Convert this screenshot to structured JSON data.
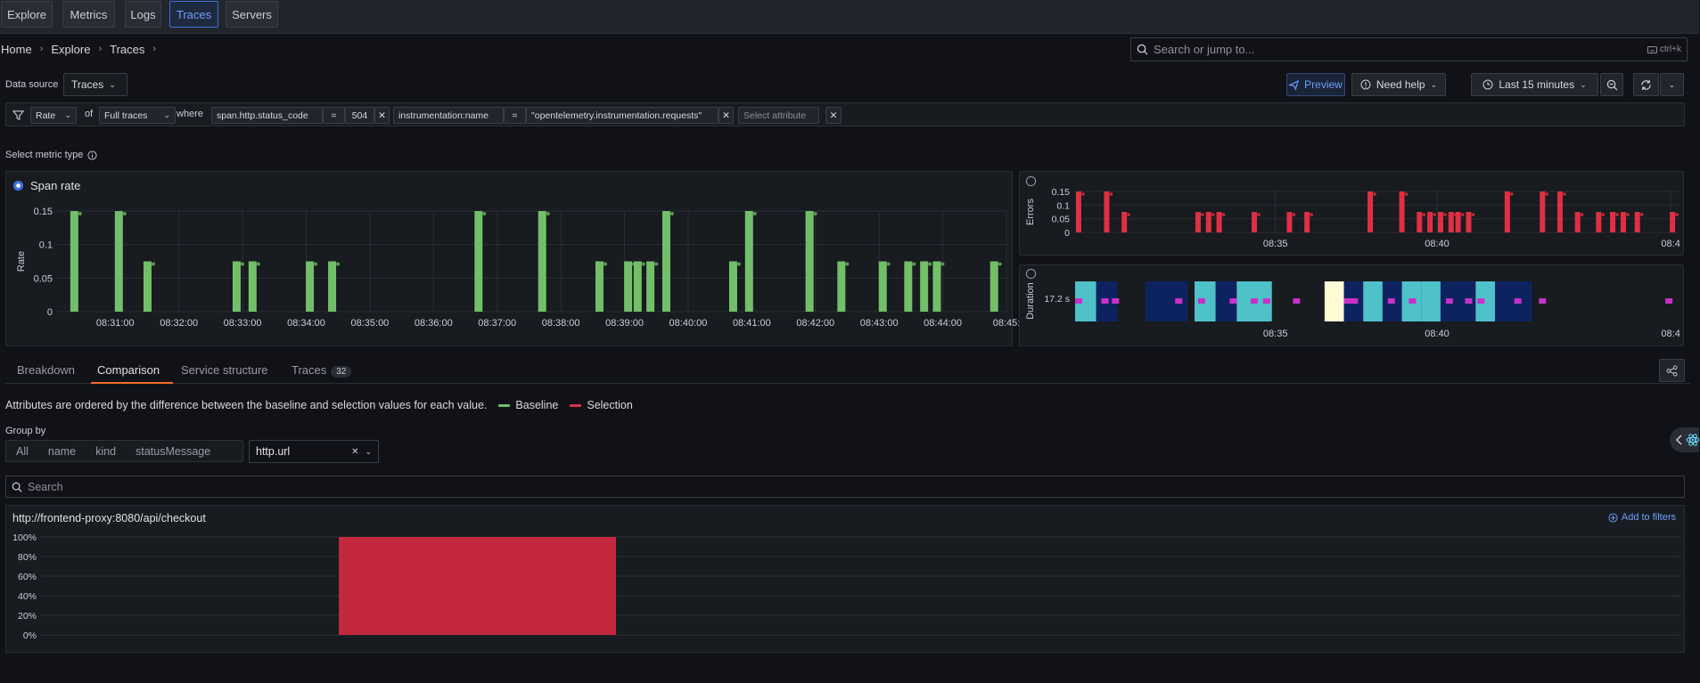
{
  "nav": {
    "items": [
      {
        "label": "Explore",
        "active": false
      },
      {
        "label": "Metrics",
        "active": false
      },
      {
        "label": "Logs",
        "active": false
      },
      {
        "label": "Traces",
        "active": true
      },
      {
        "label": "Servers",
        "active": false
      }
    ]
  },
  "breadcrumb": [
    "Home",
    "Explore",
    "Traces"
  ],
  "search": {
    "placeholder": "Search or jump to...",
    "shortcut": "ctrl+k"
  },
  "datasource": {
    "label": "Data source",
    "value": "Traces"
  },
  "toolbar": {
    "preview": "Preview",
    "help": "Need help",
    "timerange": "Last 15 minutes"
  },
  "filter": {
    "metric": "Rate",
    "of": "of",
    "scope": "Full traces",
    "where": "where",
    "f1": {
      "key": "span.http.status_code",
      "op": "=",
      "value": "504"
    },
    "f2": {
      "key": "instrumentation:name",
      "op": "=",
      "value": "\"opentelemetry.instrumentation.requests\""
    },
    "select_placeholder": "Select attribute"
  },
  "metric_type_label": "Select metric type",
  "colors": {
    "baseline": "#73bf69",
    "selection": "#e02f44",
    "errors": "#e02f44",
    "hm_dark": "#0d2360",
    "hm_teal": "#4fc1c9",
    "hm_yellow": "#fffbd5",
    "hm_exemplar": "#c930c9",
    "selected_bar": "#c4283e"
  },
  "icons": [
    "filter-icon",
    "info-icon",
    "plane-icon",
    "help-icon",
    "clock-icon",
    "zoom-out-icon",
    "refresh-icon",
    "share-icon",
    "search-icon",
    "keyboard-icon",
    "radio-icon",
    "plus-icon",
    "close-icon",
    "chevron-down-icon"
  ],
  "chart_data": [
    {
      "type": "bar",
      "title": "Span rate",
      "ylabel": "Rate",
      "ylim": [
        0,
        0.15
      ],
      "yticks": [
        "0",
        "0.05",
        "0.1",
        "0.15"
      ],
      "xticks": [
        "08:31:00",
        "08:32:00",
        "08:33:00",
        "08:34:00",
        "08:35:00",
        "08:36:00",
        "08:37:00",
        "08:38:00",
        "08:39:00",
        "08:40:00",
        "08:41:00",
        "08:42:00",
        "08:43:00",
        "08:44:00",
        "08:45:"
      ],
      "series": [
        {
          "name": "Baseline",
          "x": [
            0.25,
            0.95,
            1.4,
            2.8,
            3.05,
            3.95,
            4.3,
            6.6,
            7.6,
            8.5,
            8.95,
            9.1,
            9.3,
            9.55,
            10.6,
            10.85,
            11.8,
            12.3,
            12.95,
            13.35,
            13.6,
            13.8,
            14.7
          ],
          "values": [
            0.15,
            0.15,
            0.075,
            0.075,
            0.075,
            0.075,
            0.075,
            0.15,
            0.15,
            0.075,
            0.075,
            0.075,
            0.075,
            0.15,
            0.075,
            0.15,
            0.15,
            0.075,
            0.075,
            0.075,
            0.075,
            0.075,
            0.075
          ]
        }
      ]
    },
    {
      "type": "bar",
      "ylabel": "Errors",
      "ylim": [
        0,
        0.15
      ],
      "yticks": [
        "0",
        "0.05",
        "0.1",
        "0.15"
      ],
      "xticks": [
        "08:35",
        "08:40",
        "08:4"
      ],
      "series": [
        {
          "name": "Errors",
          "x": [
            0.1,
            0.9,
            1.4,
            3.5,
            3.8,
            4.1,
            5.1,
            6.1,
            6.6,
            8.4,
            9.3,
            9.8,
            10.1,
            10.4,
            10.7,
            10.9,
            11.2,
            12.3,
            13.3,
            13.8,
            14.3,
            14.9,
            15.3,
            15.6,
            16.0,
            17.0
          ],
          "values": [
            0.15,
            0.15,
            0.075,
            0.075,
            0.075,
            0.075,
            0.075,
            0.075,
            0.075,
            0.15,
            0.15,
            0.075,
            0.075,
            0.075,
            0.075,
            0.075,
            0.075,
            0.15,
            0.15,
            0.15,
            0.075,
            0.075,
            0.075,
            0.075,
            0.075,
            0.075
          ]
        }
      ]
    },
    {
      "type": "heatmap",
      "ylabel": "Duration",
      "yticks": [
        "17.2 s"
      ],
      "xticks": [
        "08:35",
        "08:40",
        "08:4"
      ]
    },
    {
      "type": "bar",
      "title": "http://frontend-proxy:8080/api/checkout",
      "yticks": [
        "0%",
        "20%",
        "40%",
        "60%",
        "80%",
        "100%"
      ],
      "ylim": [
        0,
        100
      ],
      "series": [
        {
          "name": "Selection",
          "values": [
            100
          ]
        }
      ]
    }
  ],
  "tabs": [
    {
      "label": "Breakdown"
    },
    {
      "label": "Comparison"
    },
    {
      "label": "Service structure"
    },
    {
      "label": "Traces",
      "count": "32"
    }
  ],
  "comparison": {
    "desc": "Attributes are ordered by the difference between the baseline and selection values for each value.",
    "baseline": "Baseline",
    "selection": "Selection"
  },
  "groupby": {
    "label": "Group by",
    "options": [
      "All",
      "name",
      "kind",
      "statusMessage"
    ],
    "selected": "http.url"
  },
  "attr_search": {
    "placeholder": "Search"
  },
  "attr_panel": {
    "add_filters": "Add to filters"
  }
}
